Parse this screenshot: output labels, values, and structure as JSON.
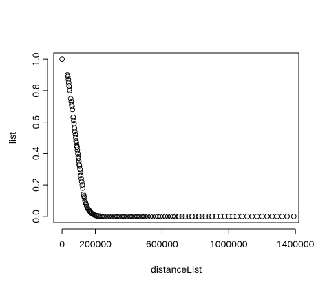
{
  "chart_data": {
    "type": "scatter",
    "title": "",
    "xlabel": "distanceList",
    "ylabel": "list",
    "xlim": [
      -50000,
      1420000
    ],
    "ylim": [
      -0.04,
      1.04
    ],
    "x_ticks": [
      0,
      200000,
      600000,
      1000000,
      1400000
    ],
    "x_tick_labels": [
      "0",
      "200000",
      "600000",
      "1000000",
      "1400000"
    ],
    "y_ticks": [
      0.0,
      0.2,
      0.4,
      0.6,
      0.8,
      1.0
    ],
    "y_tick_labels": [
      "0.0",
      "0.2",
      "0.4",
      "0.6",
      "0.8",
      "1.0"
    ],
    "grid": false,
    "legend": "none",
    "marker": "open-circle",
    "series": [
      {
        "color": "#000000",
        "points": [
          [
            0,
            1.0
          ],
          [
            32000,
            0.9
          ],
          [
            35000,
            0.89
          ],
          [
            38000,
            0.87
          ],
          [
            40000,
            0.85
          ],
          [
            42000,
            0.83
          ],
          [
            44000,
            0.81
          ],
          [
            46000,
            0.8
          ],
          [
            52000,
            0.75
          ],
          [
            55000,
            0.73
          ],
          [
            58000,
            0.71
          ],
          [
            60000,
            0.7
          ],
          [
            62000,
            0.68
          ],
          [
            67000,
            0.63
          ],
          [
            70000,
            0.61
          ],
          [
            72000,
            0.59
          ],
          [
            75000,
            0.56
          ],
          [
            77000,
            0.54
          ],
          [
            80000,
            0.52
          ],
          [
            82000,
            0.5
          ],
          [
            84000,
            0.48
          ],
          [
            86000,
            0.47
          ],
          [
            88000,
            0.45
          ],
          [
            90000,
            0.44
          ],
          [
            92000,
            0.42
          ],
          [
            95000,
            0.4
          ],
          [
            97000,
            0.38
          ],
          [
            99000,
            0.37
          ],
          [
            101000,
            0.35
          ],
          [
            103000,
            0.33
          ],
          [
            105000,
            0.32
          ],
          [
            108000,
            0.3
          ],
          [
            110000,
            0.28
          ],
          [
            112000,
            0.26
          ],
          [
            115000,
            0.24
          ],
          [
            118000,
            0.22
          ],
          [
            121000,
            0.2
          ],
          [
            124000,
            0.18
          ],
          [
            128000,
            0.14
          ],
          [
            131000,
            0.13
          ],
          [
            134000,
            0.12
          ],
          [
            137000,
            0.1
          ],
          [
            140000,
            0.09
          ],
          [
            143000,
            0.08
          ],
          [
            147000,
            0.07
          ],
          [
            150000,
            0.06
          ],
          [
            154000,
            0.05
          ],
          [
            158000,
            0.045
          ],
          [
            162000,
            0.04
          ],
          [
            166000,
            0.032
          ],
          [
            170000,
            0.028
          ],
          [
            175000,
            0.022
          ],
          [
            180000,
            0.018
          ],
          [
            185000,
            0.014
          ],
          [
            190000,
            0.011
          ],
          [
            196000,
            0.008
          ],
          [
            202000,
            0.006
          ],
          [
            208000,
            0.004
          ],
          [
            215000,
            0.003
          ],
          [
            222000,
            0.002
          ],
          [
            230000,
            0.001
          ],
          [
            240000,
            0.0
          ],
          [
            250000,
            0.0
          ],
          [
            260000,
            0.0
          ],
          [
            270000,
            0.0
          ],
          [
            280000,
            0.0
          ],
          [
            290000,
            0.0
          ],
          [
            300000,
            0.0
          ],
          [
            310000,
            0.0
          ],
          [
            320000,
            0.0
          ],
          [
            330000,
            0.0
          ],
          [
            340000,
            0.0
          ],
          [
            350000,
            0.0
          ],
          [
            360000,
            0.0
          ],
          [
            370000,
            0.0
          ],
          [
            380000,
            0.0
          ],
          [
            390000,
            0.0
          ],
          [
            400000,
            0.0
          ],
          [
            410000,
            0.0
          ],
          [
            420000,
            0.0
          ],
          [
            430000,
            0.0
          ],
          [
            440000,
            0.0
          ],
          [
            450000,
            0.0
          ],
          [
            460000,
            0.0
          ],
          [
            470000,
            0.0
          ],
          [
            480000,
            0.0
          ],
          [
            490000,
            0.0
          ],
          [
            500000,
            0.0
          ],
          [
            515000,
            0.0
          ],
          [
            530000,
            0.0
          ],
          [
            545000,
            0.0
          ],
          [
            560000,
            0.0
          ],
          [
            575000,
            0.0
          ],
          [
            590000,
            0.0
          ],
          [
            605000,
            0.0
          ],
          [
            620000,
            0.0
          ],
          [
            635000,
            0.0
          ],
          [
            650000,
            0.0
          ],
          [
            665000,
            0.0
          ],
          [
            680000,
            0.0
          ],
          [
            700000,
            0.0
          ],
          [
            720000,
            0.0
          ],
          [
            740000,
            0.0
          ],
          [
            760000,
            0.0
          ],
          [
            780000,
            0.0
          ],
          [
            800000,
            0.0
          ],
          [
            820000,
            0.0
          ],
          [
            840000,
            0.0
          ],
          [
            860000,
            0.0
          ],
          [
            880000,
            0.0
          ],
          [
            900000,
            0.0
          ],
          [
            925000,
            0.0
          ],
          [
            950000,
            0.0
          ],
          [
            975000,
            0.0
          ],
          [
            1000000,
            0.0
          ],
          [
            1025000,
            0.0
          ],
          [
            1050000,
            0.0
          ],
          [
            1080000,
            0.0
          ],
          [
            1110000,
            0.0
          ],
          [
            1140000,
            0.0
          ],
          [
            1170000,
            0.0
          ],
          [
            1200000,
            0.0
          ],
          [
            1230000,
            0.0
          ],
          [
            1260000,
            0.0
          ],
          [
            1290000,
            0.0
          ],
          [
            1320000,
            0.0
          ],
          [
            1350000,
            0.0
          ],
          [
            1390000,
            0.0
          ]
        ]
      }
    ]
  }
}
